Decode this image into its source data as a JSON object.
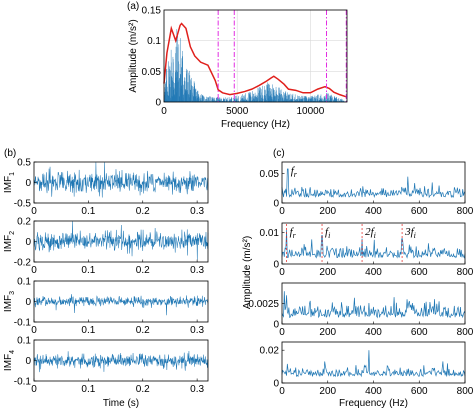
{
  "panel_letters": {
    "a": "(a)",
    "b": "(b)",
    "c": "(c)"
  },
  "colors": {
    "signal": "#1f77b4",
    "envelope": "#e0201c",
    "boundary": "#e22ee2",
    "annotation_line": "#e0201c"
  },
  "chart_data": [
    {
      "id": "a",
      "type": "line",
      "title": "",
      "xlabel": "Frequency (Hz)",
      "ylabel": "Amplitude (m/s²)",
      "xlim": [
        0,
        12500
      ],
      "ylim": [
        0,
        0.15
      ],
      "xticks": [
        0,
        5000,
        10000
      ],
      "xtick_labels": [
        "0",
        "5000",
        "10000"
      ],
      "yticks": [
        0,
        0.05,
        0.1,
        0.15
      ],
      "ytick_labels": [
        "0",
        "0.05",
        "0.1",
        "0.15"
      ],
      "grid": true,
      "spectrum_description": "dense blue spectrum",
      "spectrum_envelope_points": {
        "x": [
          0,
          200,
          400,
          600,
          800,
          1000,
          1200,
          1400,
          1600,
          1800,
          2000,
          2200,
          2400,
          2600,
          2800,
          3000,
          3500,
          4000,
          4500,
          5000,
          5500,
          6000,
          6500,
          7000,
          7300,
          7600,
          8000,
          8500,
          9000,
          9500,
          10000,
          10500,
          11000,
          11500,
          12000,
          12500
        ],
        "y": [
          0.02,
          0.06,
          0.09,
          0.11,
          0.12,
          0.12,
          0.1,
          0.07,
          0.06,
          0.045,
          0.035,
          0.025,
          0.02,
          0.012,
          0.01,
          0.009,
          0.008,
          0.007,
          0.008,
          0.01,
          0.014,
          0.018,
          0.024,
          0.03,
          0.034,
          0.03,
          0.022,
          0.015,
          0.012,
          0.01,
          0.009,
          0.012,
          0.016,
          0.012,
          0.006,
          0.003
        ]
      },
      "red_envelope": {
        "x": [
          0,
          200,
          500,
          800,
          1100,
          1200,
          1500,
          1800,
          2100,
          2500,
          3000,
          3500,
          3700,
          4000,
          4500,
          5000,
          5500,
          6000,
          6500,
          7000,
          7300,
          7500,
          7800,
          8200,
          8500,
          9000,
          9500,
          10000,
          10500,
          11000,
          11300,
          11600,
          12000,
          12500
        ],
        "y": [
          0.03,
          0.08,
          0.12,
          0.1,
          0.125,
          0.128,
          0.12,
          0.09,
          0.075,
          0.065,
          0.06,
          0.035,
          0.02,
          0.015,
          0.012,
          0.014,
          0.017,
          0.021,
          0.027,
          0.034,
          0.039,
          0.042,
          0.037,
          0.029,
          0.021,
          0.019,
          0.015,
          0.015,
          0.021,
          0.025,
          0.022,
          0.016,
          0.012,
          0.008
        ]
      },
      "boundaries": [
        3700,
        4800,
        11100,
        12450
      ]
    },
    {
      "id": "b",
      "type": "line",
      "xlabel": "Time (s)",
      "xlim": [
        0,
        0.32
      ],
      "xticks": [
        0,
        0.1,
        0.2,
        0.3
      ],
      "xtick_labels": [
        "0",
        "0.1",
        "0.2",
        "0.3"
      ],
      "subplots": [
        {
          "ylabel": "IMF",
          "ylabel_sub": "1",
          "ylim": [
            -0.5,
            0.5
          ],
          "yticks": [
            -0.5,
            0,
            0.5
          ],
          "ytick_labels": [
            "-0.5",
            "0",
            "0.5"
          ],
          "amplitude": 0.32
        },
        {
          "ylabel": "IMF",
          "ylabel_sub": "2",
          "ylim": [
            -0.2,
            0.2
          ],
          "yticks": [
            -0.2,
            0,
            0.2
          ],
          "ytick_labels": [
            "-0.2",
            "0",
            "0.2"
          ],
          "amplitude": 0.12
        },
        {
          "ylabel": "IMF",
          "ylabel_sub": "3",
          "ylim": [
            -0.1,
            0.1
          ],
          "yticks": [
            -0.1,
            0,
            0.1
          ],
          "ytick_labels": [
            "-0.1",
            "0",
            "0.1"
          ],
          "amplitude": 0.03
        },
        {
          "ylabel": "IMF",
          "ylabel_sub": "4",
          "ylim": [
            -0.1,
            0.1
          ],
          "yticks": [
            -0.1,
            0,
            0.1
          ],
          "ytick_labels": [
            "-0.1",
            "0",
            "0.1"
          ],
          "amplitude": 0.045
        }
      ]
    },
    {
      "id": "c",
      "type": "line",
      "xlabel": "Frequency (Hz)",
      "ylabel": "Amplitude (m/s²)",
      "xlim": [
        0,
        800
      ],
      "xticks": [
        0,
        200,
        400,
        600,
        800
      ],
      "xtick_labels": [
        "0",
        "200",
        "400",
        "600",
        "800"
      ],
      "subplots": [
        {
          "ylim": [
            0,
            0.07
          ],
          "yticks": [
            0,
            0.05
          ],
          "ytick_labels": [
            "0",
            "0.05"
          ],
          "base": 0.01,
          "amp": 0.012,
          "peaks": [
            [
              25,
              0.058
            ],
            [
              550,
              0.045
            ]
          ],
          "annotations": [
            {
              "text": "f",
              "sub": "r",
              "x": 25
            }
          ]
        },
        {
          "ylim": [
            0,
            0.013
          ],
          "yticks": [
            0,
            0.01
          ],
          "ytick_labels": [
            "0",
            "0.01"
          ],
          "base": 0.002,
          "amp": 0.0025,
          "peaks": [
            [
              20,
              0.0108
            ],
            [
              175,
              0.009
            ],
            [
              350,
              0.008
            ],
            [
              525,
              0.008
            ]
          ],
          "annotations": [
            {
              "text": "f",
              "sub": "r",
              "x": 20
            },
            {
              "text": "f",
              "sub": "i",
              "x": 175
            },
            {
              "text": "2f",
              "sub": "i",
              "x": 350
            },
            {
              "text": "3f",
              "sub": "i",
              "x": 525
            }
          ]
        },
        {
          "ylim": [
            0,
            0.005
          ],
          "yticks": [
            0,
            0.0025
          ],
          "ytick_labels": [
            "0",
            "0.0025"
          ],
          "base": 0.0008,
          "amp": 0.0012,
          "peaks": [
            [
              10,
              0.004
            ],
            [
              20,
              0.0035
            ]
          ],
          "annotations": []
        },
        {
          "ylim": [
            0,
            0.025
          ],
          "yticks": [
            0,
            0.02
          ],
          "ytick_labels": [
            "0",
            "0.02"
          ],
          "base": 0.004,
          "amp": 0.004,
          "peaks": [
            [
              380,
              0.02
            ]
          ],
          "annotations": []
        }
      ]
    }
  ]
}
